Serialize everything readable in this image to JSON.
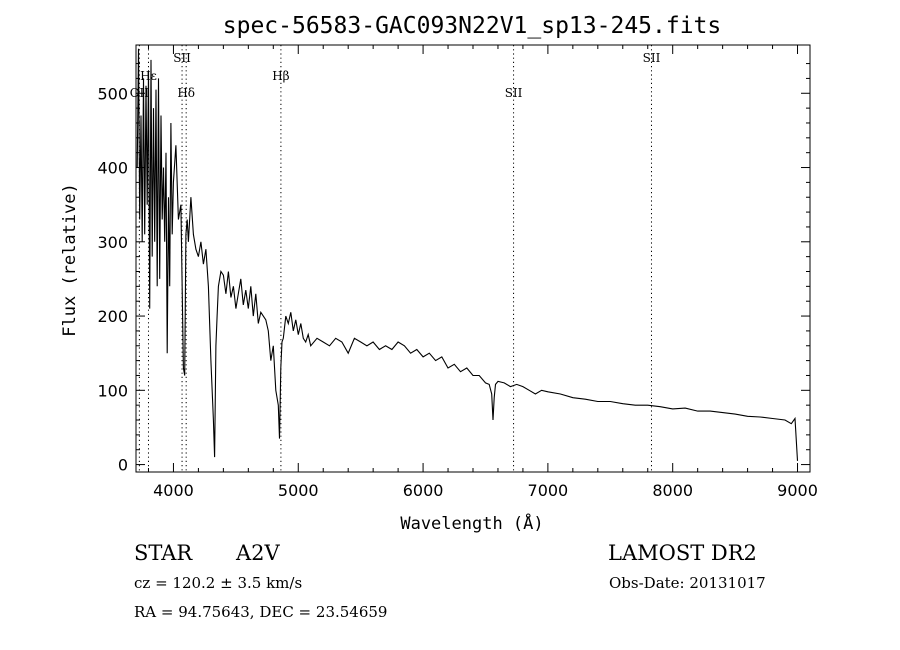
{
  "chart_data": {
    "type": "line",
    "title": "spec-56583-GAC093N22V1_sp13-245.fits",
    "xlabel": "Wavelength (Å)",
    "ylabel": "Flux (relative)",
    "xlim": [
      3700,
      9100
    ],
    "ylim": [
      -10,
      565
    ],
    "x_ticks": [
      4000,
      5000,
      6000,
      7000,
      8000,
      9000
    ],
    "y_ticks": [
      0,
      100,
      200,
      300,
      400,
      500
    ],
    "grid": false,
    "line_color": "#000000",
    "spectrum": {
      "x": [
        3710,
        3720,
        3730,
        3740,
        3750,
        3760,
        3770,
        3780,
        3790,
        3800,
        3810,
        3820,
        3830,
        3840,
        3850,
        3860,
        3870,
        3880,
        3890,
        3900,
        3910,
        3920,
        3930,
        3940,
        3950,
        3960,
        3970,
        3980,
        3990,
        4000,
        4020,
        4040,
        4060,
        4080,
        4090,
        4100,
        4110,
        4120,
        4140,
        4160,
        4180,
        4200,
        4220,
        4240,
        4260,
        4280,
        4300,
        4320,
        4330,
        4340,
        4350,
        4360,
        4380,
        4400,
        4420,
        4440,
        4460,
        4480,
        4500,
        4520,
        4540,
        4560,
        4580,
        4600,
        4620,
        4640,
        4660,
        4680,
        4700,
        4720,
        4740,
        4760,
        4780,
        4800,
        4820,
        4840,
        4850,
        4860,
        4870,
        4880,
        4900,
        4920,
        4940,
        4960,
        4980,
        5000,
        5020,
        5040,
        5060,
        5080,
        5100,
        5150,
        5200,
        5250,
        5300,
        5350,
        5400,
        5450,
        5500,
        5550,
        5600,
        5650,
        5700,
        5750,
        5800,
        5850,
        5900,
        5950,
        6000,
        6050,
        6100,
        6150,
        6200,
        6250,
        6300,
        6350,
        6400,
        6450,
        6500,
        6530,
        6550,
        6560,
        6570,
        6580,
        6600,
        6650,
        6700,
        6750,
        6800,
        6850,
        6900,
        6950,
        7000,
        7100,
        7200,
        7300,
        7400,
        7500,
        7600,
        7700,
        7800,
        7900,
        8000,
        8100,
        8200,
        8300,
        8400,
        8500,
        8600,
        8700,
        8800,
        8900,
        8950,
        8980,
        9000
      ],
      "y": [
        400,
        560,
        330,
        470,
        300,
        520,
        310,
        510,
        350,
        530,
        210,
        545,
        280,
        480,
        300,
        505,
        240,
        520,
        250,
        470,
        330,
        400,
        300,
        420,
        150,
        360,
        240,
        460,
        310,
        380,
        430,
        330,
        350,
        130,
        120,
        310,
        330,
        300,
        360,
        310,
        290,
        280,
        300,
        270,
        290,
        240,
        140,
        60,
        10,
        160,
        200,
        240,
        260,
        255,
        230,
        260,
        225,
        240,
        210,
        230,
        250,
        215,
        235,
        210,
        240,
        200,
        230,
        190,
        205,
        200,
        195,
        180,
        140,
        160,
        100,
        80,
        35,
        130,
        165,
        170,
        200,
        190,
        205,
        180,
        195,
        175,
        190,
        170,
        165,
        175,
        160,
        170,
        165,
        160,
        170,
        165,
        150,
        170,
        165,
        160,
        165,
        155,
        160,
        155,
        165,
        160,
        150,
        155,
        145,
        150,
        140,
        145,
        130,
        135,
        125,
        130,
        120,
        120,
        110,
        108,
        95,
        60,
        90,
        108,
        112,
        110,
        105,
        108,
        105,
        100,
        95,
        100,
        98,
        95,
        90,
        88,
        85,
        85,
        82,
        80,
        80,
        78,
        75,
        76,
        72,
        72,
        70,
        68,
        65,
        64,
        62,
        60,
        55,
        62,
        5
      ]
    },
    "lines": [
      {
        "label": "OII",
        "wavelength": 3727,
        "row": 2
      },
      {
        "label": "Hε",
        "wavelength": 3800,
        "row": 1
      },
      {
        "label": "SII",
        "wavelength": 4069,
        "row": 0
      },
      {
        "label": "Hδ",
        "wavelength": 4102,
        "row": 2
      },
      {
        "label": "Hβ",
        "wavelength": 4861,
        "row": 1
      },
      {
        "label": "SII",
        "wavelength": 6725,
        "row": 2
      },
      {
        "label": "SII",
        "wavelength": 7830,
        "row": 0
      }
    ]
  },
  "info": {
    "class_label": "STAR",
    "subclass": "A2V",
    "survey": "LAMOST DR2",
    "redshift": "cz = 120.2 ± 3.5 km/s",
    "obs_date": "Obs-Date: 20131017",
    "coords": "RA =  94.75643, DEC =  23.54659"
  }
}
